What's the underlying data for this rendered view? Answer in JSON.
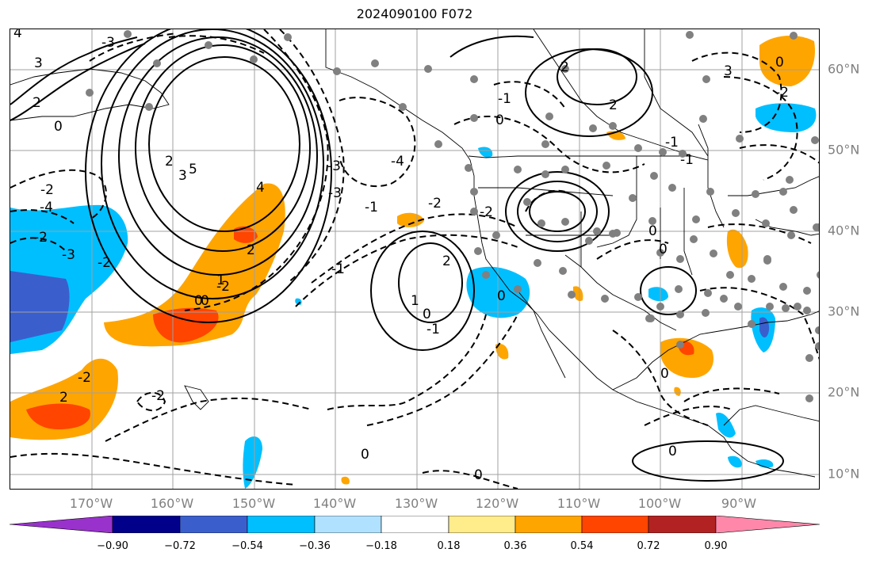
{
  "title": "2024090100 F072",
  "lon_labels": [
    "170°W",
    "160°W",
    "150°W",
    "140°W",
    "130°W",
    "120°W",
    "110°W",
    "100°W",
    "90°W"
  ],
  "lat_labels": [
    "60°N",
    "50°N",
    "40°N",
    "30°N",
    "20°N",
    "10°N"
  ],
  "contour_labels": [
    "4",
    "3",
    "2",
    "0",
    "-3",
    "5",
    "3",
    "2",
    "1",
    "0",
    "4",
    "-3",
    "-4",
    "-2",
    "-2",
    "-1",
    "2",
    "1",
    "0",
    "-2",
    "-1",
    "0",
    "-2",
    "0",
    "0",
    "0",
    "0",
    "2",
    "3",
    "-2",
    "-1",
    "0",
    "-1",
    "0",
    "-3",
    "0",
    "2",
    "-2",
    "-4",
    "-3",
    "-2",
    "2",
    "0",
    "-2",
    "0",
    "-1",
    "2",
    "-2",
    "-1"
  ],
  "colorbar": {
    "colors": [
      "#9932CC",
      "#00008B",
      "#3A5FCD",
      "#00BFFF",
      "#B0E2FF",
      "#FFFFFF",
      "#FFEC8B",
      "#FFA500",
      "#FF4500",
      "#B22222",
      "#FF88AA"
    ],
    "ticks": [
      "−0.90",
      "−0.72",
      "−0.54",
      "−0.36",
      "−0.18",
      "0.18",
      "0.36",
      "0.54",
      "0.72",
      "0.90"
    ]
  },
  "colors": {
    "dot": "#808080",
    "grid": "#a0a0a0",
    "coast": "#000000"
  }
}
